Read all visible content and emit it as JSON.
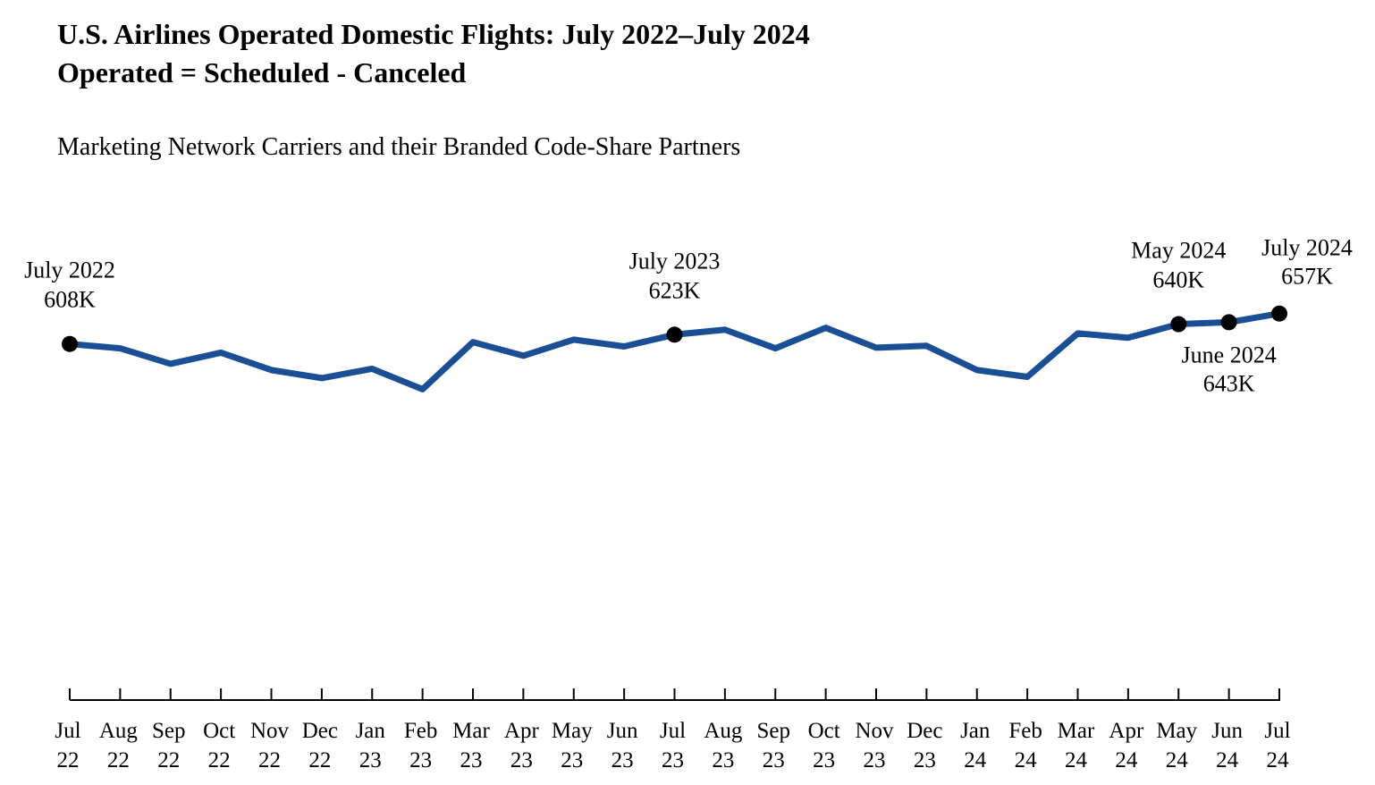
{
  "chart_data": {
    "type": "line",
    "title": "U.S. Airlines Operated Domestic Flights: July 2022–July 2024",
    "title_line2": "Operated = Scheduled - Canceled",
    "subtitle": "Marketing Network Carriers and their Branded Code-Share Partners",
    "categories": [
      "Jul 22",
      "Aug 22",
      "Sep 22",
      "Oct 22",
      "Nov 22",
      "Dec 22",
      "Jan 23",
      "Feb 23",
      "Mar 23",
      "Apr 23",
      "May 23",
      "Jun 23",
      "Jul 23",
      "Aug 23",
      "Sep 23",
      "Oct 23",
      "Nov 23",
      "Dec 23",
      "Jan 24",
      "Feb 24",
      "Mar 24",
      "Apr 24",
      "May 24",
      "Jun 24",
      "Jul 24"
    ],
    "series": [
      {
        "name": "Operated",
        "color": "#1a4f95",
        "values": [
          608,
          601,
          576,
          594,
          566,
          553,
          568,
          535,
          611,
          589,
          615,
          604,
          623,
          631,
          601,
          634,
          602,
          605,
          566,
          555,
          625,
          618,
          640,
          643,
          657
        ],
        "value_labels": [
          "608K",
          null,
          null,
          null,
          null,
          null,
          null,
          null,
          null,
          null,
          null,
          null,
          "623K",
          null,
          null,
          null,
          null,
          null,
          null,
          null,
          null,
          null,
          "640K",
          "643K",
          "657K"
        ],
        "point_labels": [
          "July 2022",
          null,
          null,
          null,
          null,
          null,
          null,
          null,
          null,
          null,
          null,
          null,
          "July 2023",
          null,
          null,
          null,
          null,
          null,
          null,
          null,
          null,
          null,
          "May 2024",
          "June 2024",
          "July 2024"
        ]
      }
    ],
    "ylim": [
      50,
      790
    ]
  }
}
